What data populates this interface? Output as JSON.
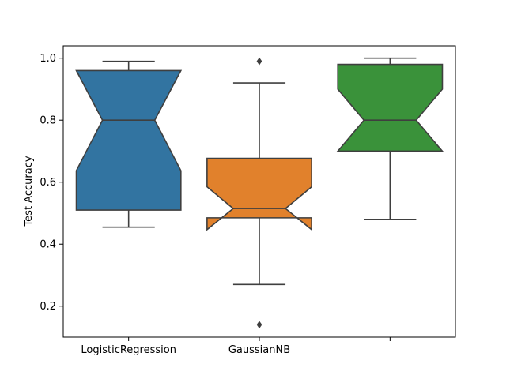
{
  "chart_data": {
    "type": "boxplot",
    "notched": true,
    "title": "",
    "xlabel": "",
    "ylabel": "Test Accuracy",
    "ylim": [
      0.1,
      1.04
    ],
    "yticks": [
      0.2,
      0.4,
      0.6,
      0.8,
      1.0
    ],
    "ytick_labels": [
      "0.2",
      "0.4",
      "0.6",
      "0.8",
      "1.0"
    ],
    "categories": [
      "LogisticRegression",
      "GaussianNB",
      ""
    ],
    "grid": false,
    "legend": "none",
    "series": [
      {
        "category": "LogisticRegression",
        "color": "#3274a1",
        "whisker_low": 0.455,
        "q1": 0.51,
        "median": 0.8,
        "q3": 0.96,
        "whisker_high": 0.99,
        "notch_low": 0.637,
        "notch_high": 0.96,
        "outliers": []
      },
      {
        "category": "GaussianNB",
        "color": "#e1812c",
        "whisker_low": 0.27,
        "q1": 0.485,
        "median": 0.515,
        "q3": 0.677,
        "whisker_high": 0.92,
        "notch_low": 0.447,
        "notch_high": 0.585,
        "outliers": [
          0.99,
          0.14
        ]
      },
      {
        "category": "",
        "color": "#3a923a",
        "whisker_low": 0.48,
        "q1": 0.7,
        "median": 0.8,
        "q3": 0.98,
        "whisker_high": 1.0,
        "notch_low": 0.7,
        "notch_high": 0.9,
        "outliers": []
      }
    ]
  }
}
